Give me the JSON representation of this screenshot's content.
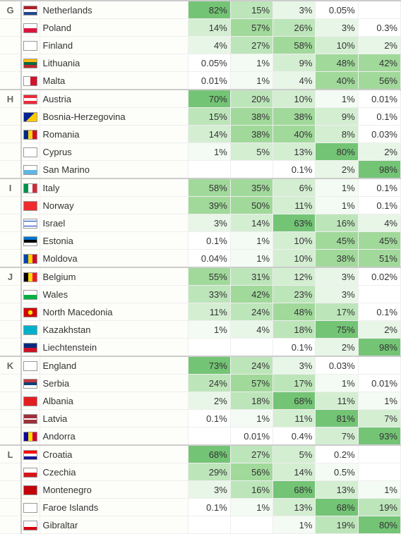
{
  "heat": {
    "colors": [
      "#ffffff",
      "#f4fbf4",
      "#e8f6e7",
      "#d4eed2",
      "#bde5ba",
      "#a1d99b",
      "#74c476"
    ],
    "thresholds": [
      0.5,
      2,
      5,
      15,
      35,
      60
    ]
  },
  "columns": {
    "pct_count": 5
  },
  "flags": {
    "nl": "linear-gradient(#AE1C28 33%, #fff 33% 66%, #21468B 66%)",
    "pl": "linear-gradient(#fff 50%, #dc143c 50%)",
    "fi": "linear-gradient(#fff,#fff)",
    "lt": "linear-gradient(#fdb913 33%, #006a44 33% 66%, #c1272d 66%)",
    "mt": "linear-gradient(90deg,#fff 50%, #cf142b 50%)",
    "at": "linear-gradient(#ed2939 33%, #fff 33% 66%, #ed2939 66%)",
    "ba": "linear-gradient(135deg,#002395 50%,#fecb00 50%)",
    "ro": "linear-gradient(90deg,#002B7F 33%, #FCD116 33% 66%, #CE1126 66%)",
    "cy": "linear-gradient(#fff,#fff)",
    "sm": "linear-gradient(#fff 50%, #5eb6e4 50%)",
    "it": "linear-gradient(90deg,#009246 33%, #fff 33% 66%, #ce2b37 66%)",
    "no": "linear-gradient(#ef2b2d,#ef2b2d)",
    "il": "linear-gradient(#fff 15%, #0038b8 15% 25%, #fff 25% 75%, #0038b8 75% 85%, #fff 85%)",
    "ee": "linear-gradient(#0072ce 33%, #000 33% 66%, #fff 66%)",
    "md": "linear-gradient(90deg,#0046ae 33%, #ffd200 33% 66%, #cc092f 66%)",
    "be": "linear-gradient(90deg,#000 33%, #FFD90C 33% 66%, #F31830 66%)",
    "wl": "linear-gradient(#fff 50%, #00B140 50%)",
    "mk": "radial-gradient(circle,#FFE600 30%,#D20000 30%)",
    "kz": "linear-gradient(#00AFCA,#00AFCA)",
    "li": "linear-gradient(#002B7F 50%, #CE1126 50%)",
    "en": "linear-gradient(#fff,#fff)",
    "rs": "linear-gradient(#c6363c 33%, #0c4076 33% 66%, #fff 66%)",
    "al": "linear-gradient(#e41e20,#e41e20)",
    "lv": "linear-gradient(#9e3039 40%, #fff 40% 60%, #9e3039 60%)",
    "ad": "linear-gradient(90deg,#10069F 33%, #FEDD00 33% 66%, #D50032 66%)",
    "hr": "linear-gradient(#ff0000 33%, #fff 33% 66%, #171796 66%)",
    "cz": "linear-gradient(#fff 50%, #d7141a 50%)",
    "me": "linear-gradient(#c40308,#c40308)",
    "fo": "linear-gradient(#fff,#fff)",
    "gi": "linear-gradient(#fff 66%, #da000c 66%)"
  },
  "groups": [
    {
      "id": "G",
      "rows": [
        {
          "flag": "nl",
          "name": "Netherlands",
          "pcts": [
            82,
            15,
            3,
            0.05,
            null
          ]
        },
        {
          "flag": "pl",
          "name": "Poland",
          "pcts": [
            14,
            57,
            26,
            3,
            0.3
          ]
        },
        {
          "flag": "fi",
          "name": "Finland",
          "pcts": [
            4,
            27,
            58,
            10,
            2
          ]
        },
        {
          "flag": "lt",
          "name": "Lithuania",
          "pcts": [
            0.05,
            1,
            9,
            48,
            42
          ]
        },
        {
          "flag": "mt",
          "name": "Malta",
          "pcts": [
            0.01,
            1,
            4,
            40,
            56
          ]
        }
      ]
    },
    {
      "id": "H",
      "rows": [
        {
          "flag": "at",
          "name": "Austria",
          "pcts": [
            70,
            20,
            10,
            1,
            0.01
          ]
        },
        {
          "flag": "ba",
          "name": "Bosnia-Herzegovina",
          "pcts": [
            15,
            38,
            38,
            9,
            0.1
          ]
        },
        {
          "flag": "ro",
          "name": "Romania",
          "pcts": [
            14,
            38,
            40,
            8,
            0.03
          ]
        },
        {
          "flag": "cy",
          "name": "Cyprus",
          "pcts": [
            1,
            5,
            13,
            80,
            2
          ]
        },
        {
          "flag": "sm",
          "name": "San Marino",
          "pcts": [
            null,
            null,
            0.1,
            2,
            98
          ]
        }
      ]
    },
    {
      "id": "I",
      "rows": [
        {
          "flag": "it",
          "name": "Italy",
          "pcts": [
            58,
            35,
            6,
            1,
            0.1
          ]
        },
        {
          "flag": "no",
          "name": "Norway",
          "pcts": [
            39,
            50,
            11,
            1,
            0.1
          ]
        },
        {
          "flag": "il",
          "name": "Israel",
          "pcts": [
            3,
            14,
            63,
            16,
            4
          ]
        },
        {
          "flag": "ee",
          "name": "Estonia",
          "pcts": [
            0.1,
            1,
            10,
            45,
            45
          ]
        },
        {
          "flag": "md",
          "name": "Moldova",
          "pcts": [
            0.04,
            1,
            10,
            38,
            51
          ]
        }
      ]
    },
    {
      "id": "J",
      "rows": [
        {
          "flag": "be",
          "name": "Belgium",
          "pcts": [
            55,
            31,
            12,
            3,
            0.02
          ]
        },
        {
          "flag": "wl",
          "name": "Wales",
          "pcts": [
            33,
            42,
            23,
            3,
            null
          ]
        },
        {
          "flag": "mk",
          "name": "North Macedonia",
          "pcts": [
            11,
            24,
            48,
            17,
            0.1
          ]
        },
        {
          "flag": "kz",
          "name": "Kazakhstan",
          "pcts": [
            1,
            4,
            18,
            75,
            2
          ]
        },
        {
          "flag": "li",
          "name": "Liechtenstein",
          "pcts": [
            null,
            null,
            0.1,
            2,
            98
          ]
        }
      ]
    },
    {
      "id": "K",
      "rows": [
        {
          "flag": "en",
          "name": "England",
          "pcts": [
            73,
            24,
            3,
            0.03,
            null
          ]
        },
        {
          "flag": "rs",
          "name": "Serbia",
          "pcts": [
            24,
            57,
            17,
            1,
            0.01
          ]
        },
        {
          "flag": "al",
          "name": "Albania",
          "pcts": [
            2,
            18,
            68,
            11,
            1
          ]
        },
        {
          "flag": "lv",
          "name": "Latvia",
          "pcts": [
            0.1,
            1,
            11,
            81,
            7
          ]
        },
        {
          "flag": "ad",
          "name": "Andorra",
          "pcts": [
            null,
            0.01,
            0.4,
            7,
            93
          ]
        }
      ]
    },
    {
      "id": "L",
      "rows": [
        {
          "flag": "hr",
          "name": "Croatia",
          "pcts": [
            68,
            27,
            5,
            0.2,
            null
          ]
        },
        {
          "flag": "cz",
          "name": "Czechia",
          "pcts": [
            29,
            56,
            14,
            0.5,
            null
          ]
        },
        {
          "flag": "me",
          "name": "Montenegro",
          "pcts": [
            3,
            16,
            68,
            13,
            1
          ]
        },
        {
          "flag": "fo",
          "name": "Faroe Islands",
          "pcts": [
            0.1,
            1,
            13,
            68,
            19
          ]
        },
        {
          "flag": "gi",
          "name": "Gibraltar",
          "pcts": [
            null,
            null,
            1,
            19,
            80
          ]
        }
      ]
    }
  ]
}
